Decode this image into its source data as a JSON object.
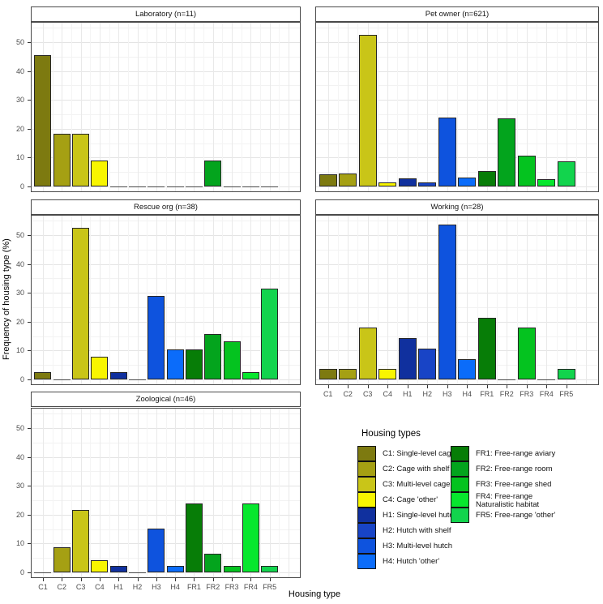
{
  "chart_data": {
    "type": "bar",
    "faceted": true,
    "categories": [
      "C1",
      "C2",
      "C3",
      "C4",
      "H1",
      "H2",
      "H3",
      "H4",
      "FR1",
      "FR2",
      "FR3",
      "FR4",
      "FR5"
    ],
    "facets": [
      {
        "label": "Laboratory (n=11)",
        "n": 11,
        "values": [
          45.5,
          18.2,
          18.2,
          9.1,
          0,
          0,
          0,
          0,
          0,
          9.1,
          0,
          0,
          0
        ]
      },
      {
        "label": "Pet owner (n=621)",
        "n": 621,
        "values": [
          4.2,
          4.4,
          52.5,
          1.3,
          2.7,
          1.4,
          24.0,
          3.1,
          5.2,
          23.7,
          10.6,
          2.4,
          8.7
        ]
      },
      {
        "label": "Rescue org (n=38)",
        "n": 38,
        "values": [
          2.6,
          0,
          52.6,
          7.9,
          2.6,
          0,
          28.9,
          10.5,
          10.5,
          15.8,
          13.2,
          2.6,
          31.6
        ]
      },
      {
        "label": "Working (n=28)",
        "n": 28,
        "values": [
          3.6,
          3.6,
          17.9,
          3.6,
          14.3,
          10.7,
          53.6,
          7.1,
          21.4,
          0,
          17.9,
          0,
          3.6
        ]
      },
      {
        "label": "Zoological (n=46)",
        "n": 46,
        "values": [
          0,
          8.7,
          21.7,
          4.3,
          2.2,
          0,
          15.2,
          2.2,
          23.9,
          6.5,
          2.2,
          23.9,
          2.2
        ]
      }
    ],
    "xlabel": "Housing type",
    "ylabel": "Frequency of housing type (%)",
    "y_ticks": [
      0,
      10,
      20,
      30,
      40,
      50
    ],
    "ylim": [
      0,
      57
    ],
    "grid": "major and minor, light gray on white",
    "legend_position": "bottom-right panel slot",
    "palette": {
      "C1": "#7d7a10",
      "C2": "#a5a013",
      "C3": "#c9c518",
      "C4": "#f8f500",
      "H1": "#10309e",
      "H2": "#1844c6",
      "H3": "#0e53de",
      "H4": "#0b6cfa",
      "FR1": "#077d07",
      "FR2": "#03a41d",
      "FR3": "#04c31f",
      "FR4": "#07e72e",
      "FR5": "#12d44d"
    }
  },
  "legend": {
    "title": "Housing types",
    "columns": [
      [
        {
          "code": "C1",
          "label": "C1: Single-level cage"
        },
        {
          "code": "C2",
          "label": "C2: Cage with shelf"
        },
        {
          "code": "C3",
          "label": "C3: Multi-level cage"
        },
        {
          "code": "C4",
          "label": "C4: Cage 'other'"
        },
        {
          "code": "H1",
          "label": "H1: Single-level hutch"
        },
        {
          "code": "H2",
          "label": "H2: Hutch with shelf"
        },
        {
          "code": "H3",
          "label": "H3: Multi-level hutch"
        },
        {
          "code": "H4",
          "label": "H4: Hutch 'other'"
        }
      ],
      [
        {
          "code": "FR1",
          "label": "FR1: Free-range aviary"
        },
        {
          "code": "FR2",
          "label": "FR2: Free-range room"
        },
        {
          "code": "FR3",
          "label": "FR3: Free-range shed"
        },
        {
          "code": "FR4",
          "label": "FR4: Free-range\nNaturalistic habitat"
        },
        {
          "code": "FR5",
          "label": "FR5: Free-range 'other'"
        }
      ]
    ]
  }
}
